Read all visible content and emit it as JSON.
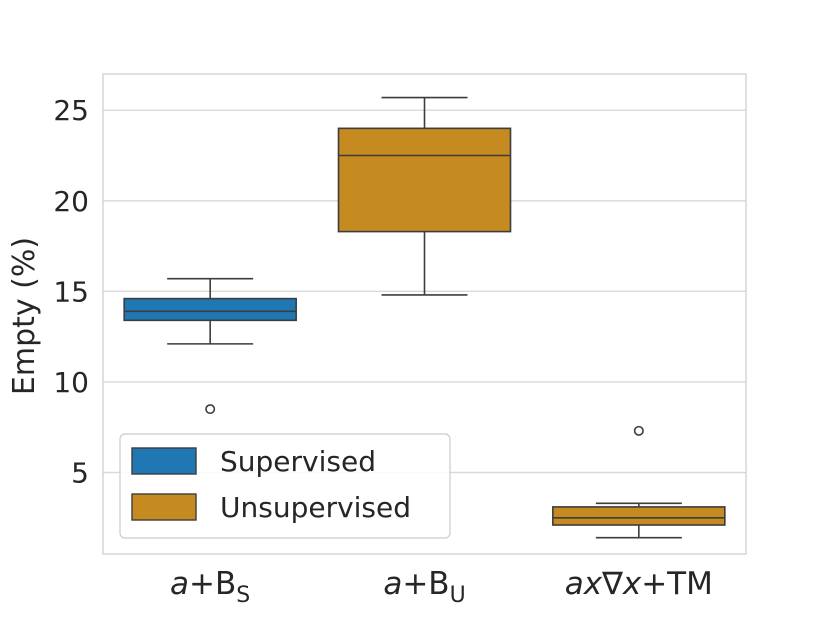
{
  "chart_data": {
    "type": "box",
    "title": "",
    "xlabel": "",
    "ylabel": "Empty (%)",
    "ylim": [
      0.5,
      27
    ],
    "yticks": [
      5,
      10,
      15,
      20,
      25
    ],
    "categories": [
      {
        "main": "a",
        "rest": "+B",
        "sub": "S"
      },
      {
        "main": "a",
        "rest": "+B",
        "sub": "U"
      },
      {
        "main": "ax∇x",
        "rest": "+TM",
        "sub": ""
      }
    ],
    "series": [
      {
        "name": "Supervised",
        "color": "#1f77b4"
      },
      {
        "name": "Unsupervised",
        "color": "#c58a20"
      }
    ],
    "boxes": [
      {
        "category": 0,
        "series": 0,
        "whisker_low": 12.1,
        "q1": 13.4,
        "median": 13.9,
        "q3": 14.6,
        "whisker_high": 15.7,
        "outliers": [
          8.5
        ]
      },
      {
        "category": 1,
        "series": 1,
        "whisker_low": 14.8,
        "q1": 18.3,
        "median": 22.5,
        "q3": 24.0,
        "whisker_high": 25.7,
        "outliers": []
      },
      {
        "category": 2,
        "series": 1,
        "whisker_low": 1.4,
        "q1": 2.1,
        "median": 2.5,
        "q3": 3.1,
        "whisker_high": 3.3,
        "outliers": [
          7.3
        ]
      }
    ],
    "legend": {
      "position": "lower-left"
    },
    "grid": true
  }
}
